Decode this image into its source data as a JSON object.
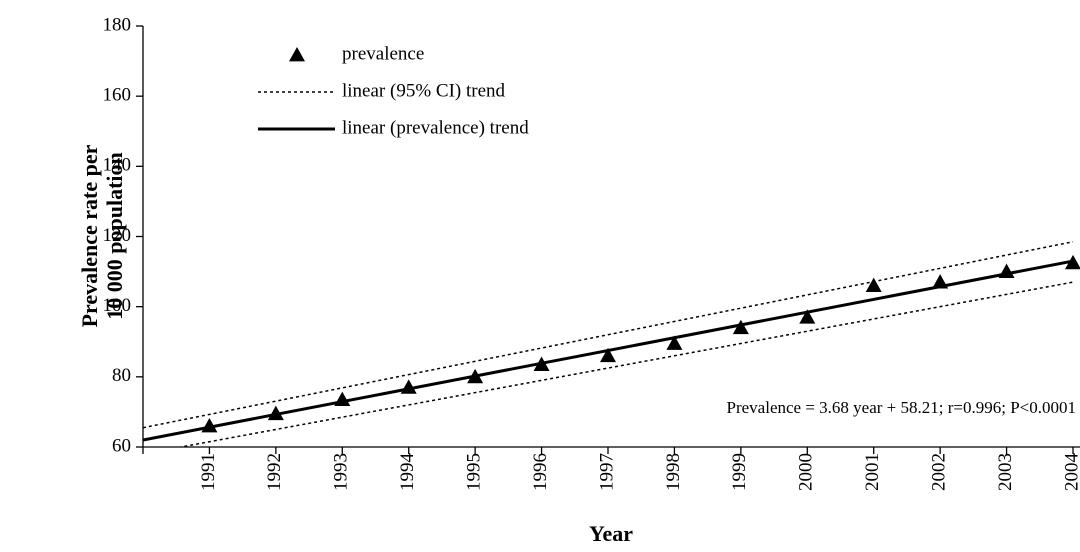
{
  "chart_data": {
    "type": "scatter",
    "y_label": [
      "Prevalence rate per",
      "10 000  population"
    ],
    "x_label": "Year",
    "annotation": "Prevalence = 3.68 year + 58.21; r=0.996; P<0.0001",
    "xlim": [
      1990,
      2004
    ],
    "xticks": [
      1991,
      1992,
      1993,
      1994,
      1995,
      1996,
      1997,
      1998,
      1999,
      2000,
      2001,
      2002,
      2003,
      2004
    ],
    "ylim": [
      60,
      180
    ],
    "yticks": [
      60,
      80,
      100,
      120,
      140,
      160,
      180
    ],
    "series": [
      {
        "name": "prevalence",
        "type": "scatter",
        "color": "#000000",
        "x": [
          1991,
          1992,
          1993,
          1994,
          1995,
          1996,
          1997,
          1998,
          1999,
          2000,
          2001,
          2002,
          2003,
          2004
        ],
        "values": [
          66,
          69.5,
          73.5,
          77,
          80,
          83.5,
          86,
          89.5,
          94,
          97,
          106,
          107,
          110,
          112.5
        ]
      },
      {
        "name": "linear (95% CI) trend",
        "type": "line",
        "dash": true,
        "color": "#000000",
        "x": [
          1990,
          2004
        ],
        "values": [
          65.5,
          118.5
        ]
      },
      {
        "type": "line",
        "dash": true,
        "color": "#000000",
        "x": [
          1990,
          2004
        ],
        "values": [
          58,
          107
        ]
      },
      {
        "name": "linear (prevalence) trend",
        "type": "line",
        "dash": false,
        "color": "#000000",
        "x": [
          1990,
          2004
        ],
        "values": [
          62,
          113
        ]
      }
    ]
  }
}
